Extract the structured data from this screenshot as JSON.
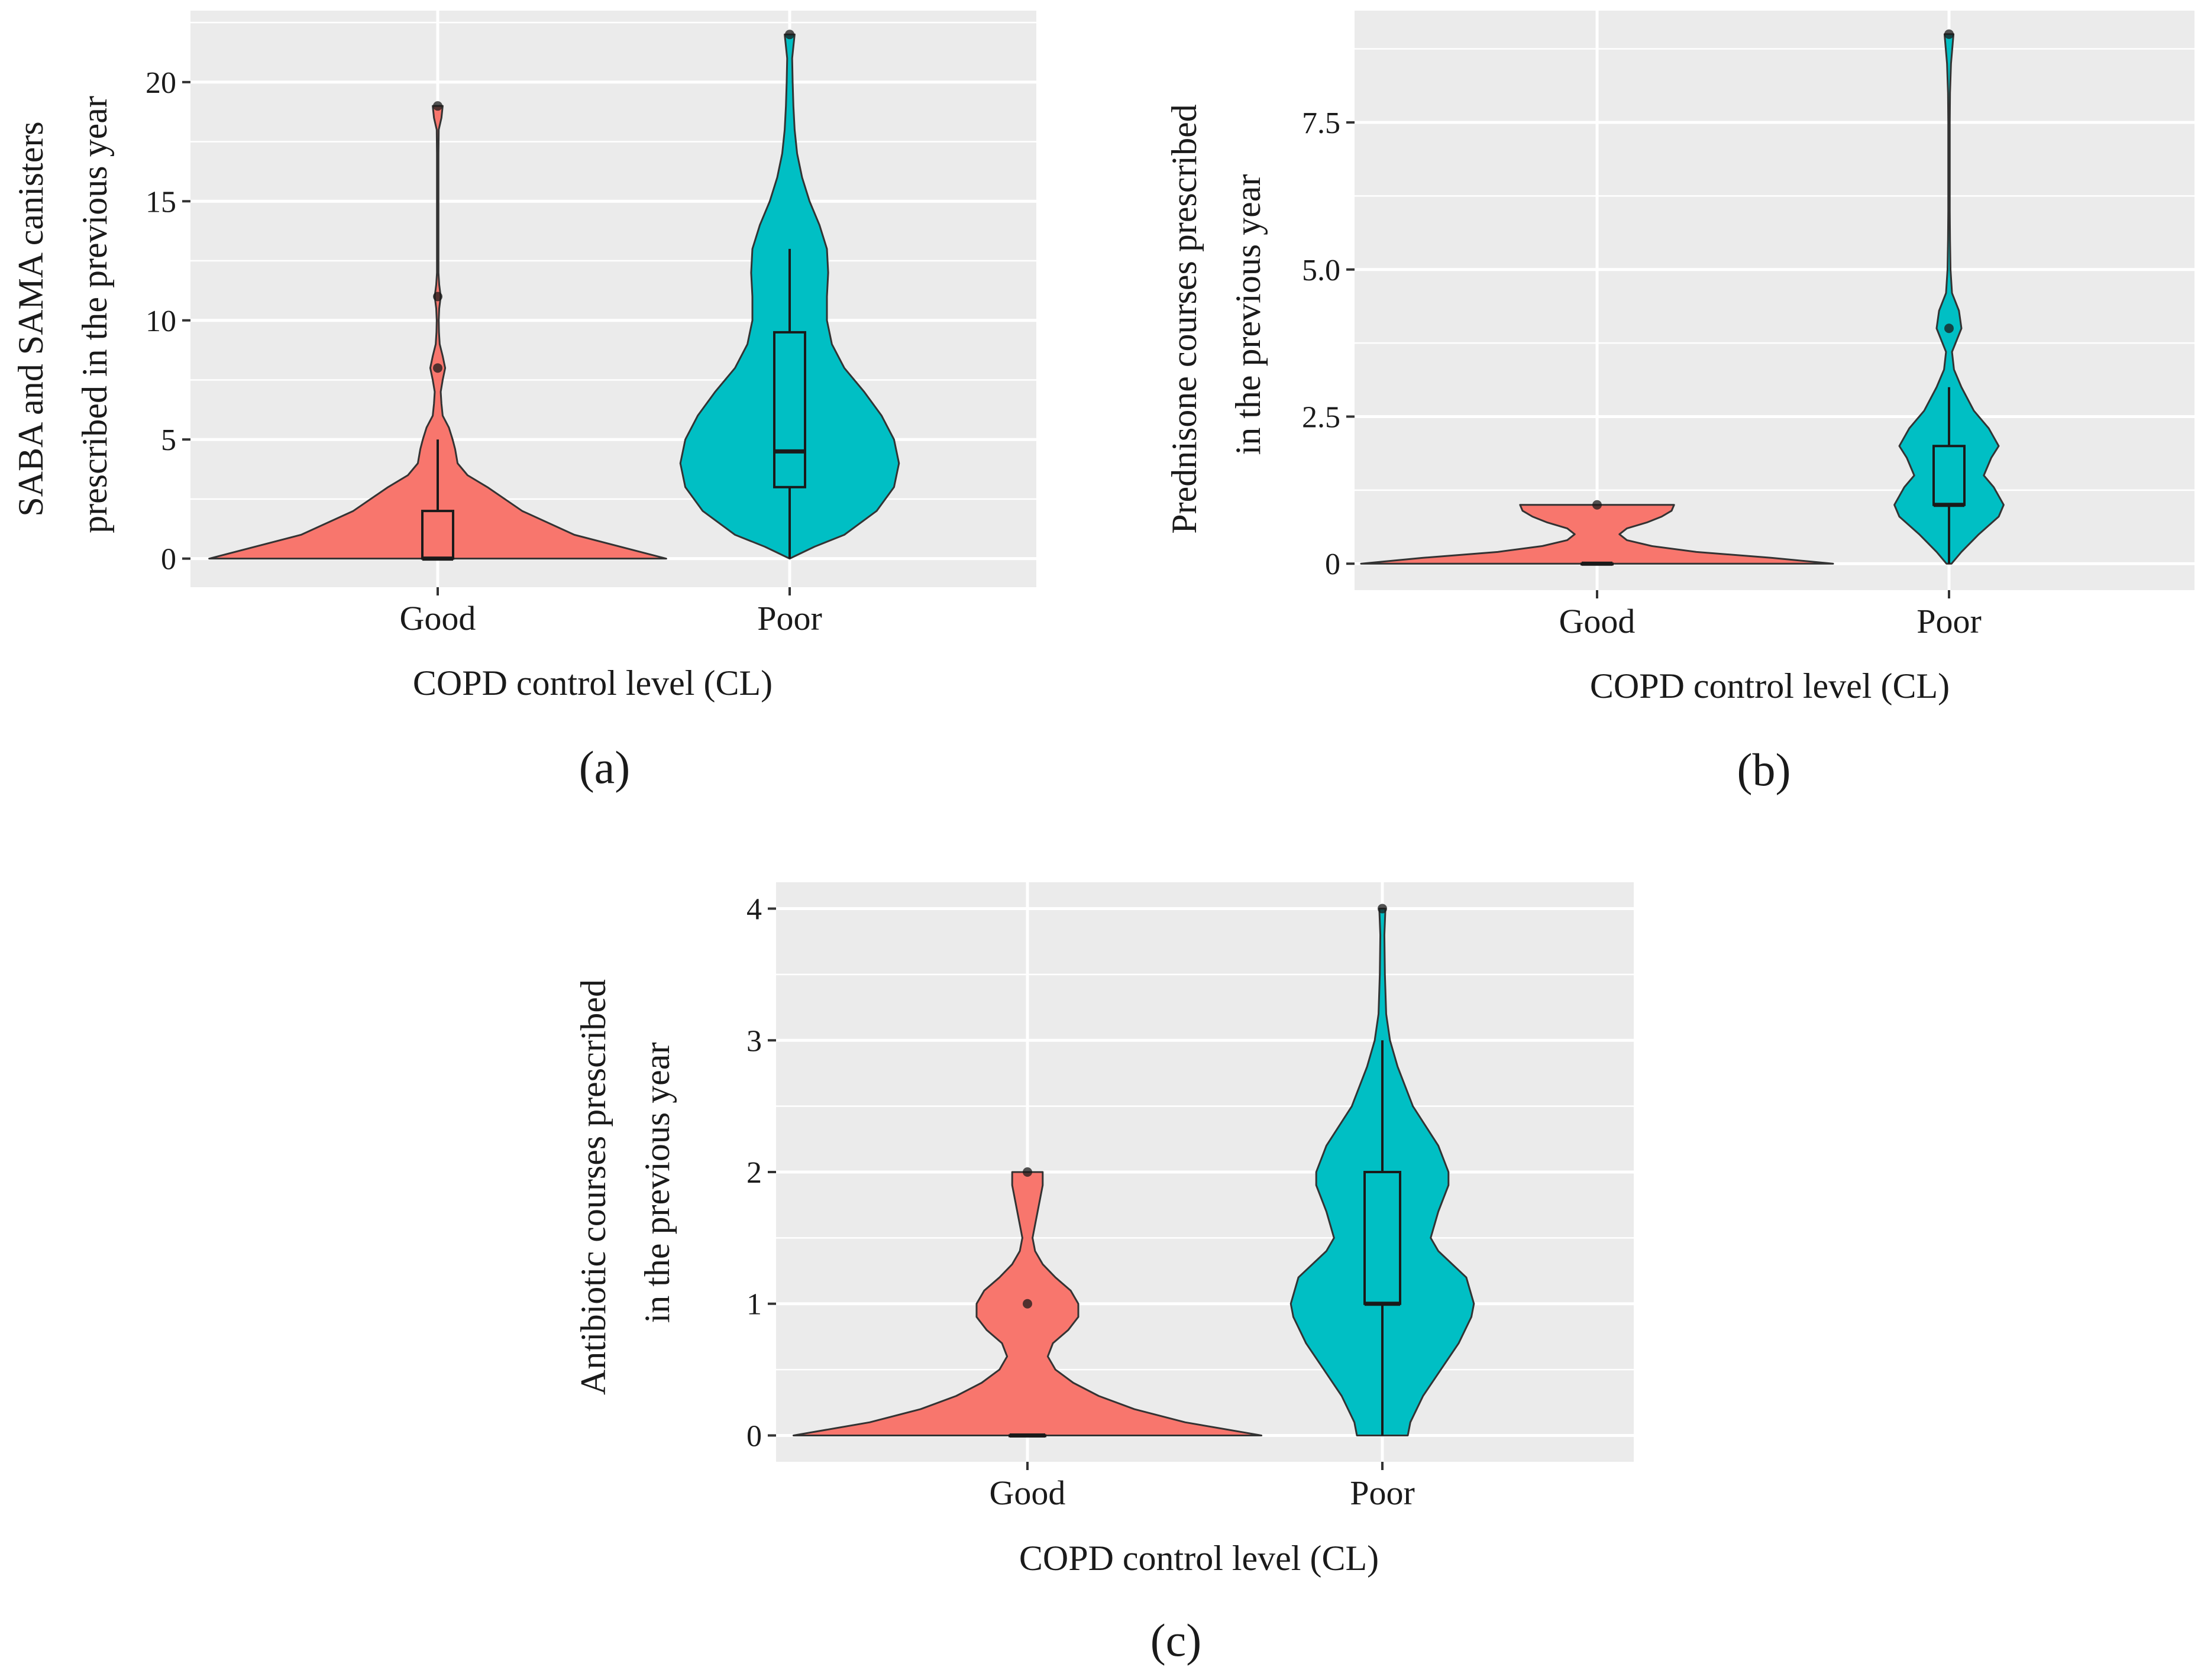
{
  "colors": {
    "good": "#F8766D",
    "poor": "#00BFC4",
    "panel_bg": "#EBEBEB",
    "grid": "#FFFFFF",
    "outline": "#333333"
  },
  "chart_data": [
    {
      "type": "violin",
      "panel_label": "(a)",
      "xlabel": "COPD control level (CL)",
      "ylabel": [
        "SABA and SAMA canisters",
        "prescribed in the previous year"
      ],
      "ylim": [
        -1.2,
        23
      ],
      "yticks": [
        0,
        5,
        10,
        15,
        20
      ],
      "tick_labels": [
        "0",
        "5",
        "10",
        "15",
        "20"
      ],
      "categories": [
        "Good",
        "Poor"
      ],
      "series": [
        {
          "name": "Good",
          "color": "good",
          "box": {
            "min": 0,
            "q1": 0,
            "median": 0,
            "q3": 2,
            "max": 5
          },
          "outliers": [
            8,
            11,
            19
          ],
          "density": [
            [
              0,
              0.92
            ],
            [
              1,
              0.55
            ],
            [
              2,
              0.34
            ],
            [
              3,
              0.2
            ],
            [
              3.5,
              0.12
            ],
            [
              4,
              0.08
            ],
            [
              4.6,
              0.07
            ],
            [
              5,
              0.06
            ],
            [
              5.5,
              0.045
            ],
            [
              6,
              0.02
            ],
            [
              6.5,
              0.015
            ],
            [
              7,
              0.012
            ],
            [
              7.5,
              0.02
            ],
            [
              8,
              0.03
            ],
            [
              8.5,
              0.02
            ],
            [
              9,
              0.008
            ],
            [
              9.5,
              0.005
            ],
            [
              10,
              0.004
            ],
            [
              10.5,
              0.006
            ],
            [
              11,
              0.012
            ],
            [
              11.5,
              0.006
            ],
            [
              12,
              0.003
            ],
            [
              13,
              0.003
            ],
            [
              14,
              0.003
            ],
            [
              15,
              0.003
            ],
            [
              16,
              0.003
            ],
            [
              17,
              0.003
            ],
            [
              18,
              0.004
            ],
            [
              18.5,
              0.015
            ],
            [
              19,
              0.02
            ]
          ]
        },
        {
          "name": "Poor",
          "color": "poor",
          "box": {
            "min": 0,
            "q1": 3,
            "median": 4.5,
            "q3": 9.5,
            "max": 13
          },
          "outliers": [
            22
          ],
          "density": [
            [
              0,
              0.0
            ],
            [
              0.5,
              0.1
            ],
            [
              1,
              0.22
            ],
            [
              2,
              0.35
            ],
            [
              3,
              0.42
            ],
            [
              4,
              0.44
            ],
            [
              5,
              0.42
            ],
            [
              6,
              0.37
            ],
            [
              7,
              0.3
            ],
            [
              8,
              0.22
            ],
            [
              9,
              0.17
            ],
            [
              10,
              0.15
            ],
            [
              11,
              0.15
            ],
            [
              12,
              0.155
            ],
            [
              13,
              0.15
            ],
            [
              14,
              0.12
            ],
            [
              15,
              0.08
            ],
            [
              16,
              0.05
            ],
            [
              17,
              0.03
            ],
            [
              18,
              0.02
            ],
            [
              19,
              0.015
            ],
            [
              20,
              0.012
            ],
            [
              21,
              0.01
            ],
            [
              21.5,
              0.015
            ],
            [
              22,
              0.02
            ]
          ]
        }
      ]
    },
    {
      "type": "violin",
      "panel_label": "(b)",
      "xlabel": "COPD control level (CL)",
      "ylabel": [
        "Prednisone courses prescribed",
        "in the previous year"
      ],
      "ylim": [
        -0.45,
        9.4
      ],
      "yticks": [
        0,
        2.5,
        5,
        7.5
      ],
      "tick_labels": [
        "0",
        "2.5",
        "5.0",
        "7.5"
      ],
      "categories": [
        "Good",
        "Poor"
      ],
      "series": [
        {
          "name": "Good",
          "color": "good",
          "box": {
            "min": 0,
            "q1": 0,
            "median": 0,
            "q3": 0,
            "max": 0
          },
          "outliers": [
            1
          ],
          "density": [
            [
              0,
              0.95
            ],
            [
              0.1,
              0.7
            ],
            [
              0.2,
              0.4
            ],
            [
              0.3,
              0.22
            ],
            [
              0.4,
              0.12
            ],
            [
              0.5,
              0.09
            ],
            [
              0.6,
              0.12
            ],
            [
              0.7,
              0.2
            ],
            [
              0.8,
              0.26
            ],
            [
              0.9,
              0.3
            ],
            [
              1,
              0.31
            ]
          ]
        },
        {
          "name": "Poor",
          "color": "poor",
          "box": {
            "min": 0,
            "q1": 1,
            "median": 1,
            "q3": 2,
            "max": 3
          },
          "outliers": [
            4,
            9
          ],
          "density": [
            [
              0,
              0.01
            ],
            [
              0.2,
              0.05
            ],
            [
              0.5,
              0.12
            ],
            [
              0.8,
              0.2
            ],
            [
              1,
              0.22
            ],
            [
              1.3,
              0.18
            ],
            [
              1.5,
              0.14
            ],
            [
              1.8,
              0.17
            ],
            [
              2,
              0.2
            ],
            [
              2.3,
              0.16
            ],
            [
              2.6,
              0.1
            ],
            [
              3,
              0.05
            ],
            [
              3.3,
              0.02
            ],
            [
              3.6,
              0.012
            ],
            [
              4,
              0.05
            ],
            [
              4.3,
              0.04
            ],
            [
              4.6,
              0.012
            ],
            [
              5,
              0.006
            ],
            [
              5.5,
              0.004
            ],
            [
              6,
              0.003
            ],
            [
              6.5,
              0.003
            ],
            [
              7,
              0.003
            ],
            [
              7.5,
              0.003
            ],
            [
              8,
              0.004
            ],
            [
              8.5,
              0.008
            ],
            [
              9,
              0.018
            ]
          ]
        }
      ]
    },
    {
      "type": "violin",
      "panel_label": "(c)",
      "xlabel": "COPD control level (CL)",
      "ylabel": [
        "Antibiotic courses prescribed",
        "in the previous year"
      ],
      "ylim": [
        -0.2,
        4.2
      ],
      "yticks": [
        0,
        1,
        2,
        3,
        4
      ],
      "tick_labels": [
        "0",
        "1",
        "2",
        "3",
        "4"
      ],
      "categories": [
        "Good",
        "Poor"
      ],
      "series": [
        {
          "name": "Good",
          "color": "good",
          "box": {
            "min": 0,
            "q1": 0,
            "median": 0,
            "q3": 0,
            "max": 0
          },
          "outliers": [
            1,
            2
          ],
          "density": [
            [
              0,
              0.92
            ],
            [
              0.1,
              0.62
            ],
            [
              0.2,
              0.42
            ],
            [
              0.3,
              0.28
            ],
            [
              0.4,
              0.18
            ],
            [
              0.5,
              0.11
            ],
            [
              0.6,
              0.08
            ],
            [
              0.7,
              0.1
            ],
            [
              0.8,
              0.16
            ],
            [
              0.9,
              0.2
            ],
            [
              1,
              0.2
            ],
            [
              1.1,
              0.17
            ],
            [
              1.2,
              0.11
            ],
            [
              1.3,
              0.06
            ],
            [
              1.4,
              0.03
            ],
            [
              1.5,
              0.02
            ],
            [
              1.6,
              0.03
            ],
            [
              1.7,
              0.04
            ],
            [
              1.8,
              0.05
            ],
            [
              1.9,
              0.06
            ],
            [
              2,
              0.06
            ]
          ]
        },
        {
          "name": "Poor",
          "color": "poor",
          "box": {
            "min": 0,
            "q1": 1,
            "median": 1,
            "q3": 2,
            "max": 3
          },
          "outliers": [
            4
          ],
          "density": [
            [
              0,
              0.1
            ],
            [
              0.1,
              0.11
            ],
            [
              0.3,
              0.16
            ],
            [
              0.5,
              0.23
            ],
            [
              0.7,
              0.3
            ],
            [
              0.9,
              0.35
            ],
            [
              1,
              0.36
            ],
            [
              1.2,
              0.33
            ],
            [
              1.4,
              0.22
            ],
            [
              1.5,
              0.19
            ],
            [
              1.7,
              0.22
            ],
            [
              1.9,
              0.26
            ],
            [
              2,
              0.26
            ],
            [
              2.2,
              0.22
            ],
            [
              2.5,
              0.12
            ],
            [
              2.8,
              0.06
            ],
            [
              3,
              0.03
            ],
            [
              3.2,
              0.015
            ],
            [
              3.5,
              0.01
            ],
            [
              3.8,
              0.008
            ],
            [
              4,
              0.012
            ]
          ]
        }
      ]
    }
  ]
}
